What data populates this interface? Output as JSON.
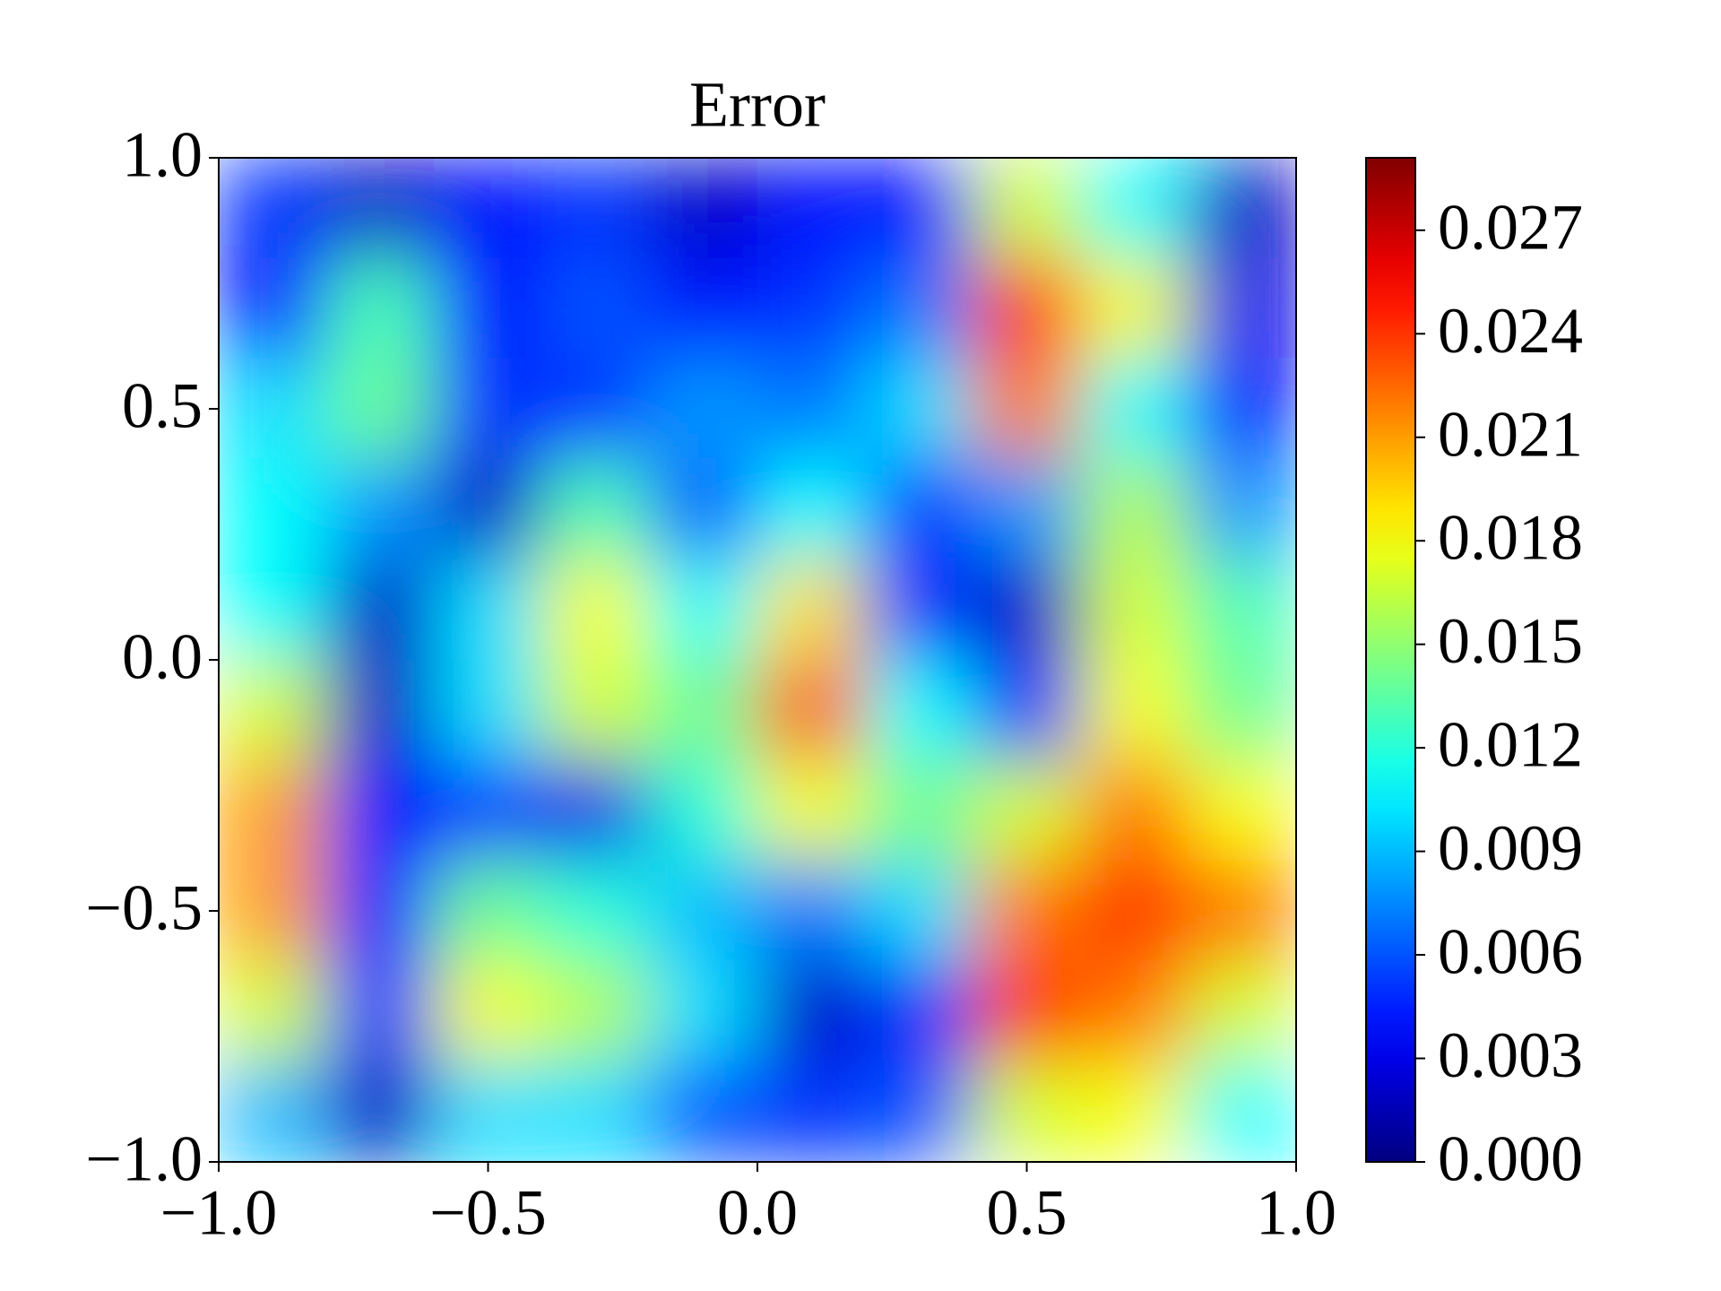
{
  "chart_data": {
    "type": "heatmap",
    "title": "Error",
    "colormap": "jet",
    "x": [
      -0.9,
      -0.7,
      -0.5,
      -0.3,
      -0.1,
      0.1,
      0.3,
      0.5,
      0.7,
      0.9
    ],
    "y": [
      0.9,
      0.7,
      0.5,
      0.3,
      0.1,
      -0.1,
      -0.3,
      -0.5,
      -0.7,
      -0.9
    ],
    "z": [
      [
        0.005,
        0.002,
        0.004,
        0.005,
        0.002,
        0.004,
        0.004,
        0.017,
        0.011,
        0.002
      ],
      [
        0.004,
        0.013,
        0.004,
        0.006,
        0.004,
        0.005,
        0.007,
        0.024,
        0.018,
        0.003
      ],
      [
        0.01,
        0.014,
        0.005,
        0.005,
        0.008,
        0.007,
        0.01,
        0.022,
        0.011,
        0.004
      ],
      [
        0.011,
        0.008,
        0.002,
        0.013,
        0.006,
        0.011,
        0.005,
        0.008,
        0.016,
        0.008
      ],
      [
        0.011,
        0.002,
        0.01,
        0.018,
        0.011,
        0.019,
        0.005,
        0.002,
        0.017,
        0.013
      ],
      [
        0.017,
        0.002,
        0.01,
        0.017,
        0.014,
        0.023,
        0.011,
        0.004,
        0.018,
        0.014
      ],
      [
        0.021,
        0.004,
        0.005,
        0.003,
        0.012,
        0.018,
        0.014,
        0.017,
        0.022,
        0.018
      ],
      [
        0.021,
        0.004,
        0.014,
        0.012,
        0.009,
        0.007,
        0.01,
        0.022,
        0.024,
        0.022
      ],
      [
        0.017,
        0.005,
        0.018,
        0.016,
        0.01,
        0.002,
        0.005,
        0.024,
        0.022,
        0.017
      ],
      [
        0.009,
        0.002,
        0.01,
        0.01,
        0.006,
        0.005,
        0.006,
        0.017,
        0.018,
        0.011
      ]
    ],
    "xlim": [
      -1,
      1
    ],
    "ylim": [
      -1,
      1
    ],
    "xticks": [
      {
        "value": -1,
        "label": "−1.0"
      },
      {
        "value": -0.5,
        "label": "−0.5"
      },
      {
        "value": 0,
        "label": "0.0"
      },
      {
        "value": 0.5,
        "label": "0.5"
      },
      {
        "value": 1,
        "label": "1.0"
      }
    ],
    "yticks": [
      {
        "value": -1,
        "label": "−1.0"
      },
      {
        "value": -0.5,
        "label": "−0.5"
      },
      {
        "value": 0,
        "label": "0.0"
      },
      {
        "value": 0.5,
        "label": "0.5"
      },
      {
        "value": 1,
        "label": "1.0"
      }
    ],
    "clim": [
      0,
      0.0291
    ],
    "cticks": [
      {
        "value": 0,
        "label": "0.000"
      },
      {
        "value": 0.003,
        "label": "0.003"
      },
      {
        "value": 0.006,
        "label": "0.006"
      },
      {
        "value": 0.009,
        "label": "0.009"
      },
      {
        "value": 0.012,
        "label": "0.012"
      },
      {
        "value": 0.015,
        "label": "0.015"
      },
      {
        "value": 0.018,
        "label": "0.018"
      },
      {
        "value": 0.021,
        "label": "0.021"
      },
      {
        "value": 0.024,
        "label": "0.024"
      },
      {
        "value": 0.027,
        "label": "0.027"
      }
    ]
  }
}
